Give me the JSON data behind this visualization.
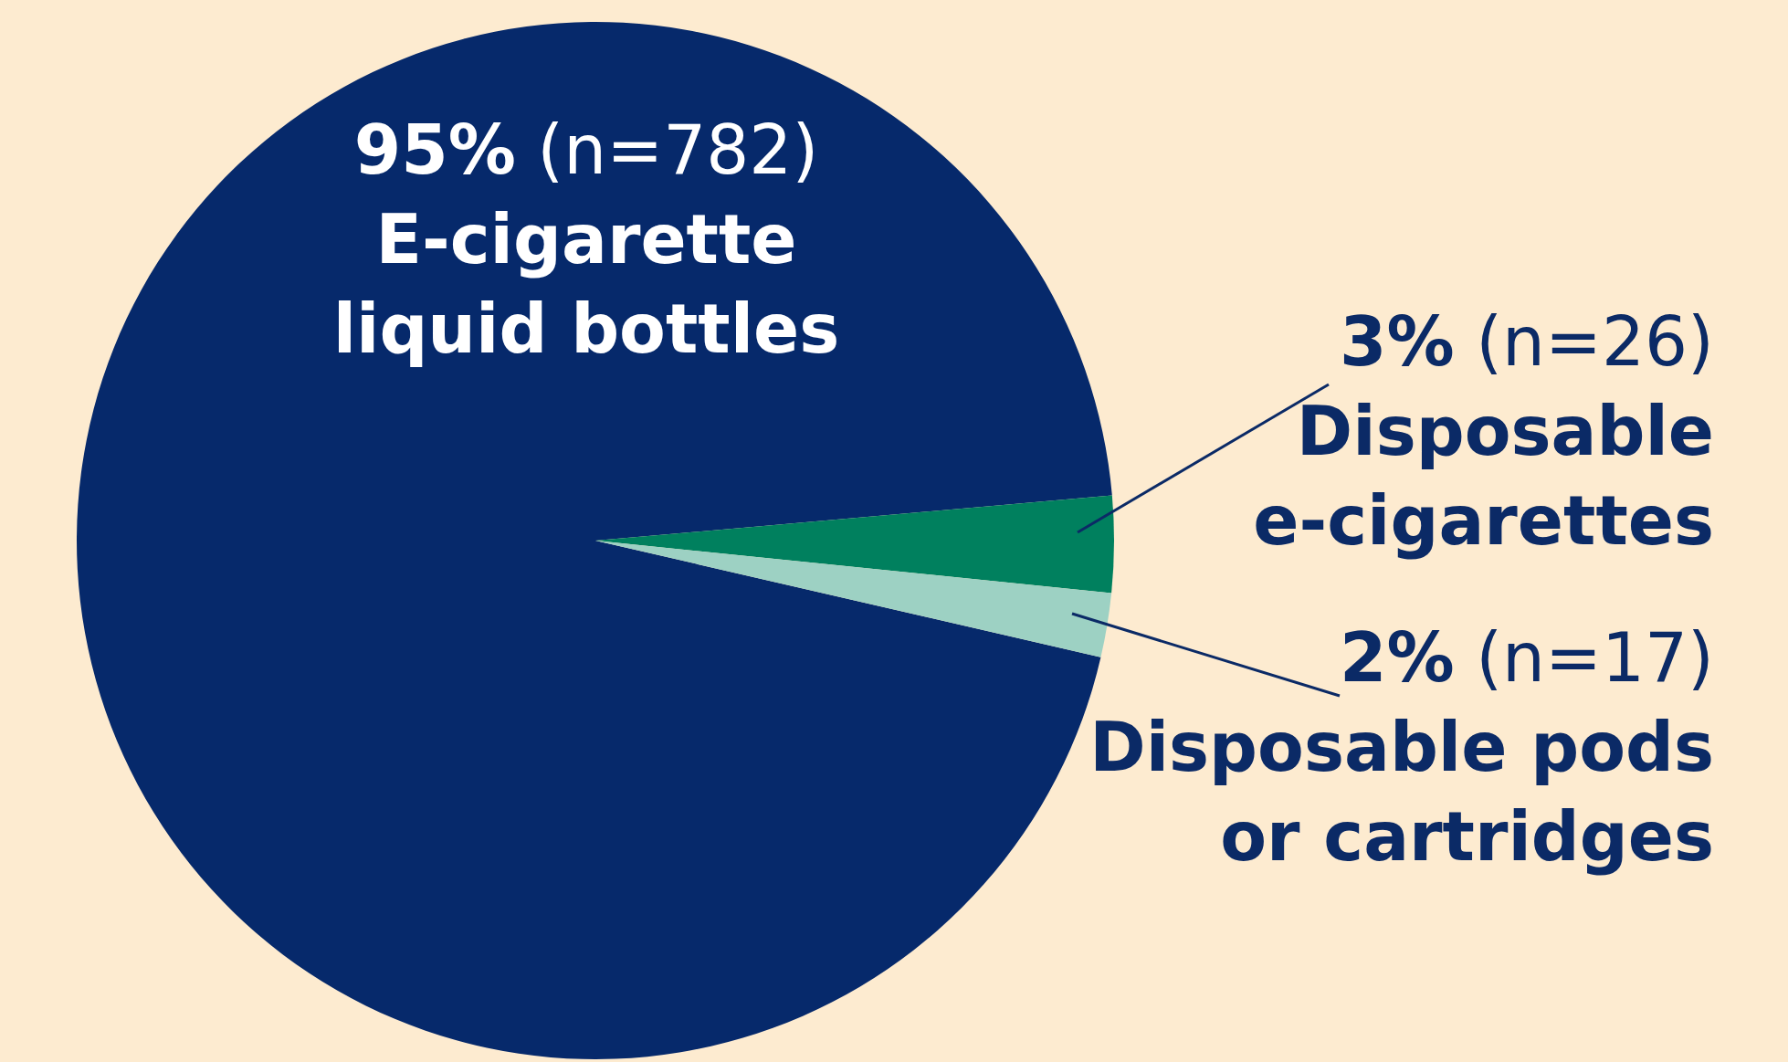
{
  "chart_data": {
    "type": "pie",
    "categories": [
      "E-cigarette liquid bottles",
      "Disposable e-cigarettes",
      "Disposable pods or cartridges"
    ],
    "values": [
      95,
      3,
      2
    ],
    "value_labels": [
      "95% (n=782)",
      "3% (n=26)",
      "2% (n=17)"
    ],
    "colors": [
      "#06296b",
      "#00805e",
      "#9dd1c3"
    ],
    "legend": false
  }
}
